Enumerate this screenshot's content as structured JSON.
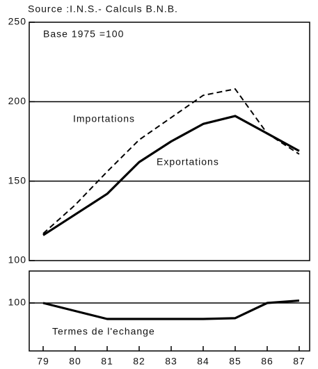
{
  "chart_data": [
    {
      "type": "line",
      "title": "Source :I.N.S.- Calculs B.N.B.",
      "subtitle": "Base 1975 =100",
      "ylim": [
        100,
        250
      ],
      "yticks": [
        100,
        150,
        200,
        250
      ],
      "grid": true,
      "series": [
        {
          "name": "Importations",
          "color": "#000000",
          "style": "dashed",
          "values": [
            117,
            135,
            156,
            176,
            190,
            204,
            208,
            180,
            167
          ]
        },
        {
          "name": "Exportations",
          "color": "#000000",
          "style": "solid",
          "values": [
            116,
            129,
            142,
            162,
            175,
            186,
            191,
            180,
            169
          ]
        }
      ]
    },
    {
      "type": "line",
      "categories": [
        "79",
        "80",
        "81",
        "82",
        "83",
        "84",
        "85",
        "86",
        "87"
      ],
      "ylim": [
        70,
        120
      ],
      "yticks": [
        100
      ],
      "grid": true,
      "series": [
        {
          "name": "Termes de l'echange",
          "color": "#000000",
          "style": "solid",
          "values": [
            100,
            95,
            90,
            90,
            90,
            90,
            90.5,
            100,
            101.5
          ]
        }
      ]
    }
  ]
}
